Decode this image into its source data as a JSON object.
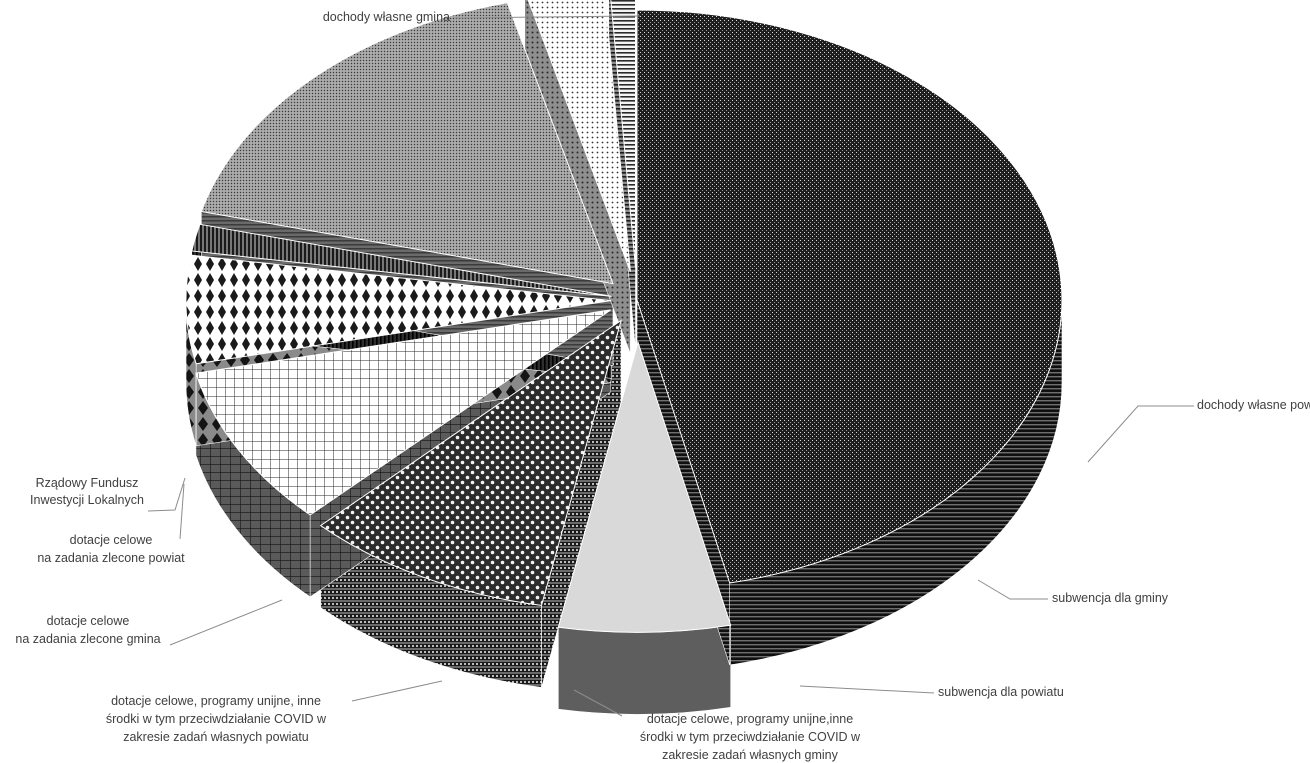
{
  "chart_data": {
    "type": "pie",
    "title": "",
    "three_d": true,
    "exploded": true,
    "legend": "none",
    "slices": [
      {
        "label": "dochody własne gmina",
        "label_lines": [
          "dochody własne gmina"
        ],
        "value": 46.5,
        "pattern": "dense-dark"
      },
      {
        "label": "dochody własne powiat",
        "label_lines": [
          "dochody własne powiat"
        ],
        "value": 6.5,
        "pattern": "light-gray"
      },
      {
        "label": "subwencja dla gminy",
        "label_lines": [
          "subwencja dla gminy"
        ],
        "value": 9.5,
        "pattern": "dots-on-dark"
      },
      {
        "label": "subwencja dla powiatu",
        "label_lines": [
          "subwencja dla powiatu"
        ],
        "value": 9.0,
        "pattern": "grid"
      },
      {
        "label": "dotacje celowe, programy unijne,inne środki w tym przeciwdziałanie COVID w zakresie zadań własnych gminy",
        "label_lines": [
          "dotacje celowe, programy unijne,inne",
          "środki w tym przeciwdziałanie COVID w",
          "zakresie zadań własnych gminy"
        ],
        "value": 6.0,
        "pattern": "diamonds"
      },
      {
        "label": "dotacje celowe, programy unijne, inne środki w tym przeciwdziałanie COVID w zakresie zadań własnych powiatu",
        "label_lines": [
          "dotacje celowe, programy unijne, inne",
          "środki w tym przeciwdziałanie COVID w",
          "zakresie zadań własnych powiatu"
        ],
        "value": 1.5,
        "pattern": "vertical-stripes"
      },
      {
        "label": "dotacje celowe na zadania zlecone gmina",
        "label_lines": [
          "dotacje celowe",
          "na zadania zlecone gmina"
        ],
        "value": 17.0,
        "pattern": "fine-mesh"
      },
      {
        "label": "dotacje celowe na zadania zlecone powiat",
        "label_lines": [
          "dotacje celowe",
          "na zadania zlecone powiat"
        ],
        "value": 3.0,
        "pattern": "fine-dots"
      },
      {
        "label": "Rządowy Fundusz Inwestycji Lokalnych",
        "label_lines": [
          "Rządowy Fundusz",
          "Inwestycji Lokalnych"
        ],
        "value": 1.0,
        "pattern": "horizontal-stripes"
      }
    ],
    "colors": {
      "leader_line": "#8c8c8c",
      "label_text": "#404040"
    }
  }
}
